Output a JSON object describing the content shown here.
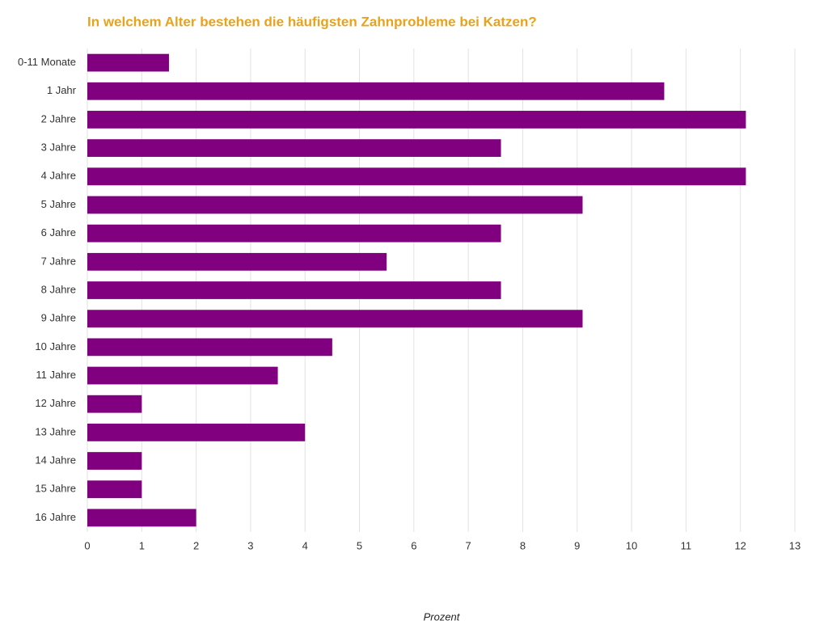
{
  "chart_data": {
    "type": "bar",
    "orientation": "horizontal",
    "title": "In welchem Alter bestehen die häufigsten Zahnprobleme bei Katzen?",
    "x_label": "Prozent",
    "categories": [
      "0-11 Monate",
      "1 Jahr",
      "2 Jahre",
      "3 Jahre",
      "4 Jahre",
      "5 Jahre",
      "6 Jahre",
      "7 Jahre",
      "8 Jahre",
      "9 Jahre",
      "10 Jahre",
      "11 Jahre",
      "12 Jahre",
      "13 Jahre",
      "14 Jahre",
      "15 Jahre",
      "16 Jahre"
    ],
    "values": [
      1.5,
      10.6,
      12.1,
      7.6,
      12.1,
      9.1,
      7.6,
      5.5,
      7.6,
      9.1,
      4.5,
      3.5,
      1.0,
      4.0,
      1.0,
      1.0,
      2.0
    ],
    "color": "#800080",
    "xlim": [
      0,
      13
    ],
    "xticks": [
      0,
      1,
      2,
      3,
      4,
      5,
      6,
      7,
      8,
      9,
      10,
      11,
      12,
      13
    ],
    "grid": true
  }
}
